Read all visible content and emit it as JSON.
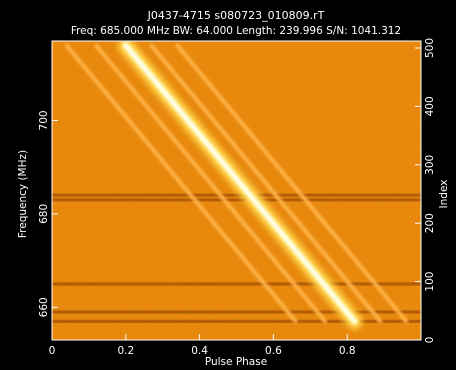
{
  "chart_data": {
    "type": "heatmap",
    "title": "J0437-4715 s080723_010809.rT",
    "subtitle": "Freq: 685.000 MHz BW: 64.000 Length: 239.996 S/N: 1041.312",
    "xlabel": "Pulse Phase",
    "ylabel": "Frequency (MHz)",
    "y2label": "Index",
    "xlim": [
      0,
      1
    ],
    "ylim": [
      653,
      717
    ],
    "y2lim": [
      0,
      512
    ],
    "xticks": [
      0,
      0.2,
      0.4,
      0.6,
      0.8
    ],
    "xtick_labels": [
      "0",
      "0.2",
      "0.4",
      "0.6",
      "0.8"
    ],
    "yticks": [
      660,
      680,
      700
    ],
    "ytick_labels": [
      "660",
      "680",
      "700"
    ],
    "y2ticks": [
      0,
      100,
      200,
      300,
      400,
      500
    ],
    "y2tick_labels": [
      "0",
      "100",
      "200",
      "300",
      "400",
      "500"
    ],
    "colormap": "heat",
    "background_color": "#ef8a10",
    "sweep": {
      "top": {
        "phase": 0.2,
        "frequency": 716
      },
      "bottom": {
        "phase": 0.82,
        "frequency": 657
      }
    },
    "secondary_component_offsets": [
      -0.08,
      -0.16,
      0.07,
      0.14
    ],
    "rfi_bands_mhz": [
      657,
      659,
      665,
      683,
      684
    ]
  }
}
